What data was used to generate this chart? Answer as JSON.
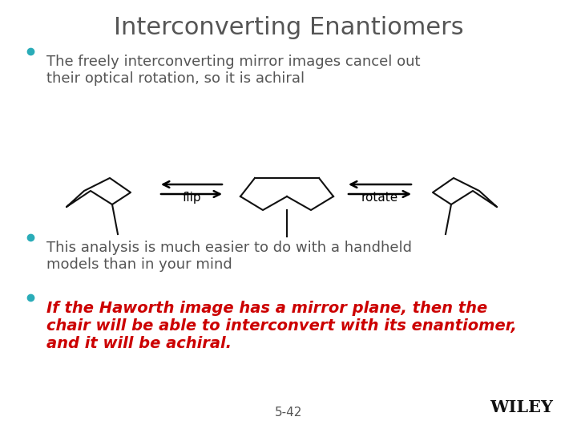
{
  "title": "Interconverting Enantiomers",
  "title_fontsize": 22,
  "title_color": "#555555",
  "bullet_color": "#2AACB8",
  "bullet1_text": "The freely interconverting mirror images cancel out\ntheir optical rotation, so it is achiral",
  "bullet2_text": "This analysis is much easier to do with a handheld\nmodels than in your mind",
  "bullet3_line1": "If the Haworth image has a mirror plane, then the",
  "bullet3_line2": "chair will be able to interconvert with its enantiomer,",
  "bullet3_line3": "and it will be achiral.",
  "bullet_fontsize": 13,
  "red_text_color": "#CC0000",
  "gray_text_color": "#555555",
  "bg_color": "#FFFFFF",
  "page_number": "5-42",
  "wiley_text": "WILEY",
  "flip_label": "flip",
  "rotate_label": "rotate",
  "chair_color": "#111111",
  "chair_lw": 1.5
}
